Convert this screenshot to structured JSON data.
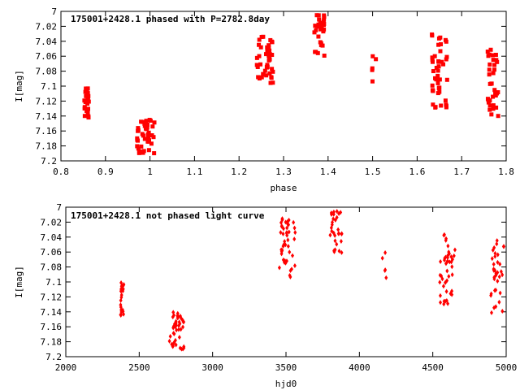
{
  "chart_data": [
    {
      "type": "scatter",
      "title": "175001+2428.1 phased with P=2782.8day",
      "xlabel": "phase",
      "ylabel": "I[mag]",
      "xlim": [
        0.8,
        1.8
      ],
      "ylim": [
        7.2,
        7.0
      ],
      "xticks": [
        "0.8",
        "0.9",
        "1",
        "1.1",
        "1.2",
        "1.3",
        "1.4",
        "1.5",
        "1.6",
        "1.7",
        "1.8"
      ],
      "yticks": [
        "7",
        "7.02",
        "7.04",
        "7.06",
        "7.08",
        "7.1",
        "7.12",
        "7.14",
        "7.16",
        "7.18",
        "7.2"
      ],
      "color": "#ff0000",
      "grid": false,
      "clusters": [
        {
          "x": 0.858,
          "xspread": 0.006,
          "ymin": 7.1,
          "ymax": 7.145,
          "n": 22
        },
        {
          "x": 0.99,
          "xspread": 0.02,
          "ymin": 7.145,
          "ymax": 7.19,
          "n": 45
        },
        {
          "x": 1.258,
          "xspread": 0.018,
          "ymin": 7.03,
          "ymax": 7.1,
          "n": 45
        },
        {
          "x": 1.38,
          "xspread": 0.012,
          "ymin": 7.005,
          "ymax": 7.06,
          "n": 30
        },
        {
          "x": 1.505,
          "xspread": 0.006,
          "ymin": 7.06,
          "ymax": 7.1,
          "n": 5
        },
        {
          "x": 1.65,
          "xspread": 0.018,
          "ymin": 7.03,
          "ymax": 7.13,
          "n": 45
        },
        {
          "x": 1.77,
          "xspread": 0.012,
          "ymin": 7.035,
          "ymax": 7.14,
          "n": 35
        }
      ]
    },
    {
      "type": "scatter",
      "title": "175001+2428.1 not phased light curve",
      "xlabel": "hjd0",
      "ylabel": "I[mag]",
      "xlim": [
        2000,
        5000
      ],
      "ylim": [
        7.2,
        7.0
      ],
      "xticks": [
        "2000",
        "2500",
        "3000",
        "3500",
        "4000",
        "4500",
        "5000"
      ],
      "yticks": [
        "7",
        "7.02",
        "7.04",
        "7.06",
        "7.08",
        "7.1",
        "7.12",
        "7.14",
        "7.16",
        "7.18",
        "7.2"
      ],
      "color": "#ff0000",
      "grid": false,
      "clusters": [
        {
          "x": 2385,
          "xspread": 12,
          "ymin": 7.1,
          "ymax": 7.145,
          "n": 22
        },
        {
          "x": 2760,
          "xspread": 55,
          "ymin": 7.14,
          "ymax": 7.19,
          "n": 45
        },
        {
          "x": 3510,
          "xspread": 55,
          "ymin": 7.015,
          "ymax": 7.1,
          "n": 45
        },
        {
          "x": 3840,
          "xspread": 40,
          "ymin": 7.005,
          "ymax": 7.065,
          "n": 30
        },
        {
          "x": 4180,
          "xspread": 25,
          "ymin": 7.06,
          "ymax": 7.1,
          "n": 5
        },
        {
          "x": 4600,
          "xspread": 55,
          "ymin": 7.03,
          "ymax": 7.13,
          "n": 45
        },
        {
          "x": 4940,
          "xspread": 45,
          "ymin": 7.04,
          "ymax": 7.145,
          "n": 35
        }
      ]
    }
  ]
}
